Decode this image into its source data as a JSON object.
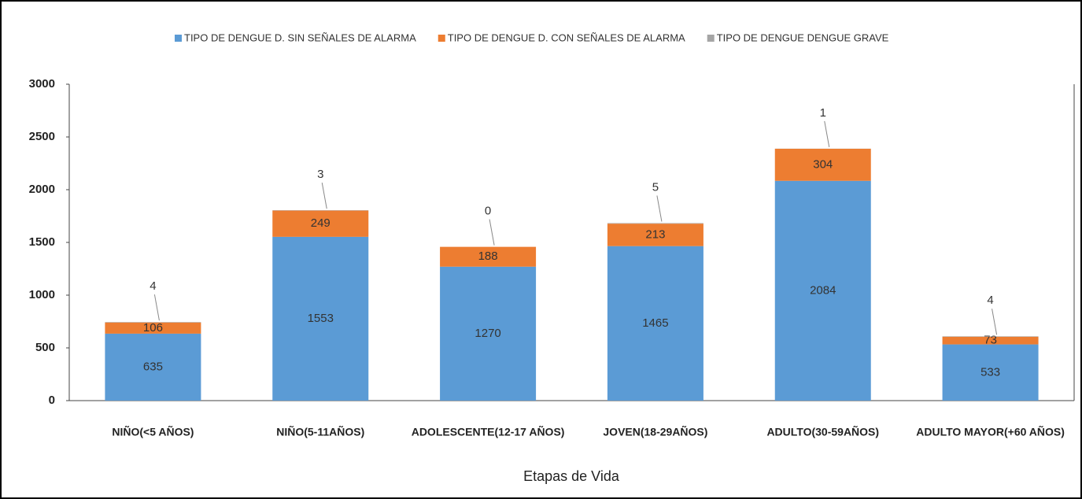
{
  "chart_data": {
    "type": "stacked-bar",
    "x_label": "Etapas de Vida",
    "categories": [
      "NIÑO(<5 AÑOS)",
      "NIÑO(5-11AÑOS)",
      "ADOLESCENTE(12-17 AÑOS)",
      "JOVEN(18-29AÑOS)",
      "ADULTO(30-59AÑOS)",
      "ADULTO MAYOR(+60 AÑOS)"
    ],
    "series": [
      {
        "name": "TIPO DE DENGUE D. SIN SEÑALES DE ALARMA",
        "color": "#5b9bd5",
        "values": [
          635,
          1553,
          1270,
          1465,
          2084,
          533
        ]
      },
      {
        "name": "TIPO DE DENGUE D. CON SEÑALES DE ALARMA",
        "color": "#ed7d31",
        "values": [
          106,
          249,
          188,
          213,
          304,
          73
        ]
      },
      {
        "name": "TIPO DE DENGUE DENGUE GRAVE",
        "color": "#a5a5a5",
        "values": [
          4,
          3,
          0,
          5,
          1,
          4
        ]
      }
    ],
    "ylim": [
      0,
      3000
    ],
    "yticks": [
      0,
      500,
      1000,
      1500,
      2000,
      2500,
      3000
    ]
  }
}
